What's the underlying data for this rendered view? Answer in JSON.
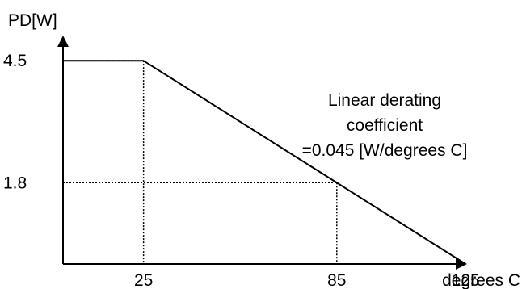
{
  "chart_data": {
    "type": "line",
    "title": "",
    "xlabel": "degrees C",
    "ylabel": "PD[W]",
    "xlim": [
      0,
      140
    ],
    "ylim": [
      0,
      5.2
    ],
    "x_ticks": [
      "25",
      "85",
      "125"
    ],
    "y_ticks": [
      "4.5",
      "1.8"
    ],
    "grid": false,
    "legend": "none",
    "series": [
      {
        "x": [
          0,
          25,
          125
        ],
        "y": [
          4.5,
          4.5,
          0
        ]
      }
    ],
    "reference_lines": [
      {
        "x": 25,
        "y": 4.5
      },
      {
        "x": 85,
        "y": 1.8
      }
    ],
    "annotation": {
      "lines": [
        "Linear derating",
        "coefficient",
        "=0.045 [W/degrees C]"
      ]
    }
  },
  "colors": {
    "axis": "#000000",
    "line": "#000000",
    "background": "#ffffff"
  }
}
